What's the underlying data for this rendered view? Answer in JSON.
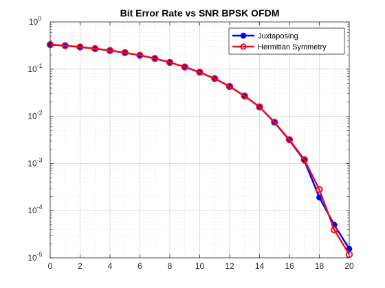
{
  "chart_data": {
    "type": "line",
    "title": "Bit Error Rate vs SNR BPSK OFDM",
    "xlabel": "",
    "ylabel": "",
    "xlim": [
      0,
      20
    ],
    "ylim": [
      1e-05,
      1
    ],
    "yscale": "log",
    "grid": true,
    "minor_grid": true,
    "legend_position": "top-right",
    "x_ticks": [
      0,
      2,
      4,
      6,
      8,
      10,
      12,
      14,
      16,
      18,
      20
    ],
    "y_ticks": [
      {
        "exponent": -5,
        "base": "10",
        "sup": "-5"
      },
      {
        "exponent": -4,
        "base": "10",
        "sup": "-4"
      },
      {
        "exponent": -3,
        "base": "10",
        "sup": "-3"
      },
      {
        "exponent": -2,
        "base": "10",
        "sup": "-2"
      },
      {
        "exponent": -1,
        "base": "10",
        "sup": "-1"
      },
      {
        "exponent": 0,
        "base": "10",
        "sup": "0"
      }
    ],
    "x": [
      0,
      1,
      2,
      3,
      4,
      5,
      6,
      7,
      8,
      9,
      10,
      11,
      12,
      13,
      14,
      15,
      16,
      17,
      18,
      19,
      20
    ],
    "series": [
      {
        "name": "Juxtaposing",
        "color": "#0000ff",
        "marker": "filled-circle",
        "values": [
          0.33,
          0.315,
          0.294,
          0.272,
          0.248,
          0.223,
          0.196,
          0.168,
          0.139,
          0.111,
          0.086,
          0.063,
          0.043,
          0.027,
          0.0158,
          0.0074,
          0.0031,
          0.00115,
          0.00019,
          5e-05,
          1.55e-05
        ]
      },
      {
        "name": "Hermitian Symmetry",
        "color": "#e81123",
        "marker": "open-circle",
        "values": [
          0.33,
          0.315,
          0.294,
          0.272,
          0.248,
          0.223,
          0.196,
          0.168,
          0.139,
          0.111,
          0.086,
          0.063,
          0.043,
          0.027,
          0.0158,
          0.0075,
          0.0032,
          0.0012,
          0.00028,
          3.9e-05,
          1.18e-05
        ]
      }
    ]
  }
}
